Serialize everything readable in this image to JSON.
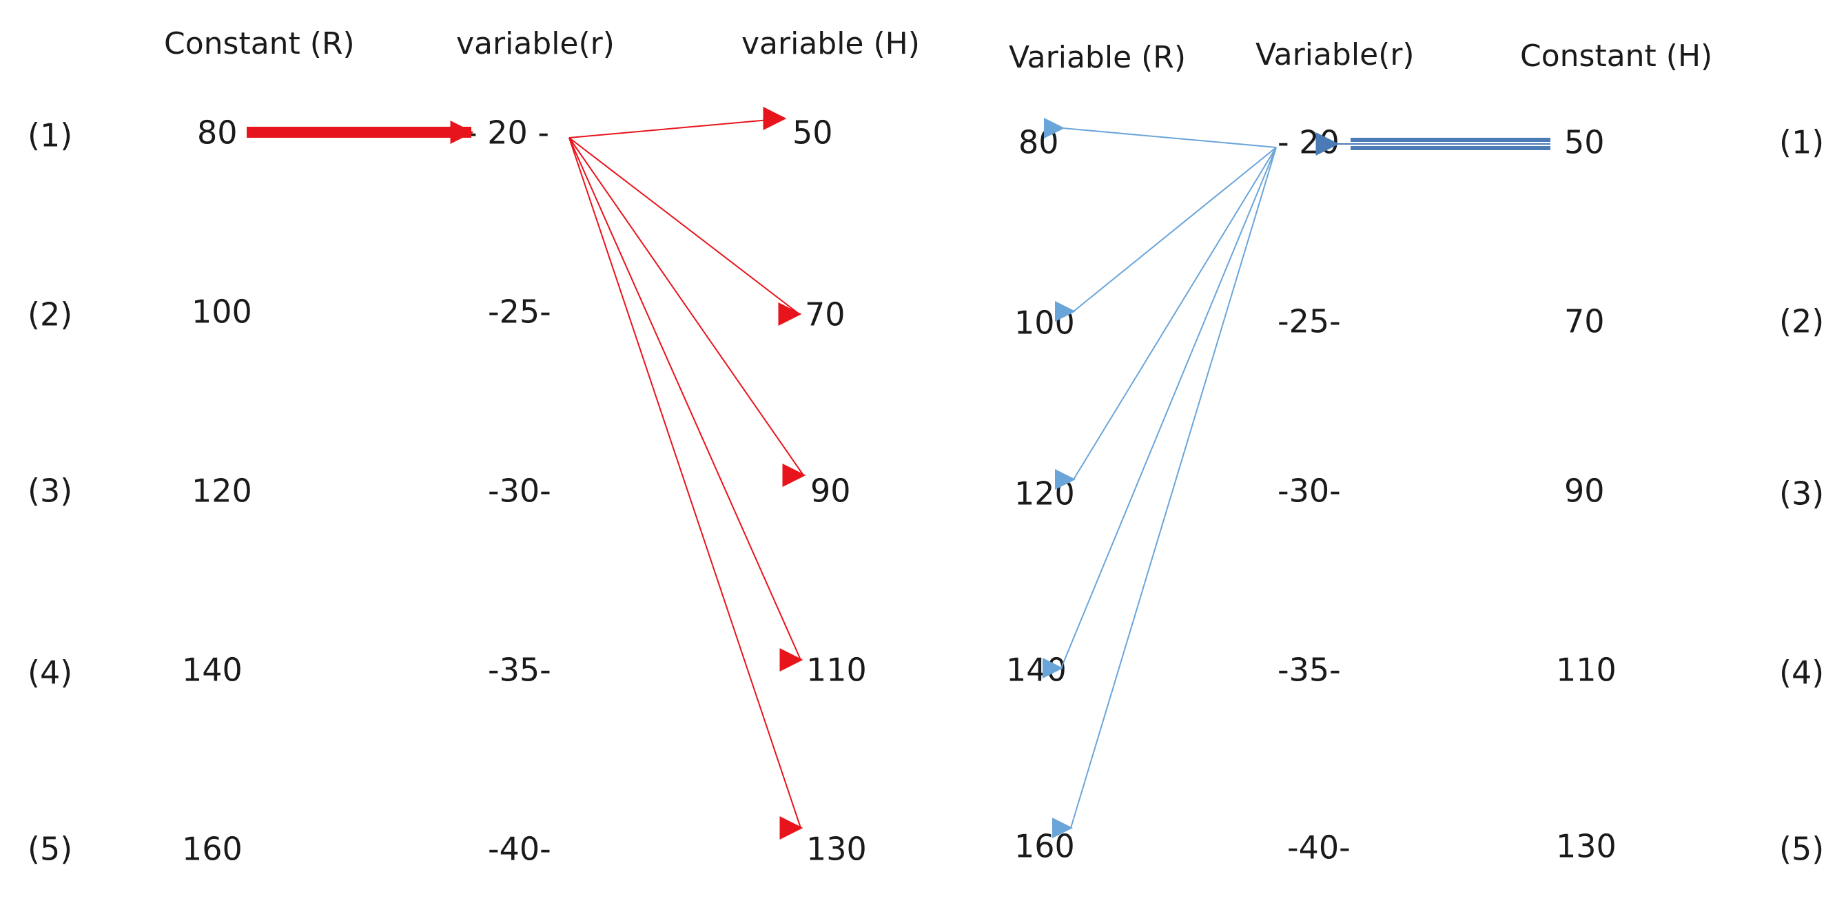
{
  "left_panel": {
    "headers": [
      "Constant (R)",
      "variable(r)",
      "variable (H)"
    ],
    "row_labels": [
      "(1)",
      "(2)",
      "(3)",
      "(4)",
      "(5)"
    ],
    "R_values": [
      "80",
      "100",
      "120",
      "140",
      "160"
    ],
    "r_values": [
      "- 20 -",
      "-25-",
      "-30-",
      "-35-",
      "-40-"
    ],
    "H_values": [
      "50",
      "70",
      "90",
      "110",
      "130"
    ],
    "arrow_color": "#e8141b"
  },
  "right_panel": {
    "headers": [
      "Variable (R)",
      "Variable(r)",
      "Constant (H)"
    ],
    "row_labels": [
      "(1)",
      "(2)",
      "(3)",
      "(4)",
      "(5)"
    ],
    "R_values": [
      "80",
      "100",
      "120",
      "140",
      "160"
    ],
    "r_values": [
      "- 20",
      "-25-",
      "-30-",
      "-35-",
      "-40-"
    ],
    "H_values": [
      "50",
      "70",
      "90",
      "110",
      "130"
    ],
    "arrow_color": "#6aa5d9",
    "thick_arrow_color": "#4a7bb7"
  }
}
